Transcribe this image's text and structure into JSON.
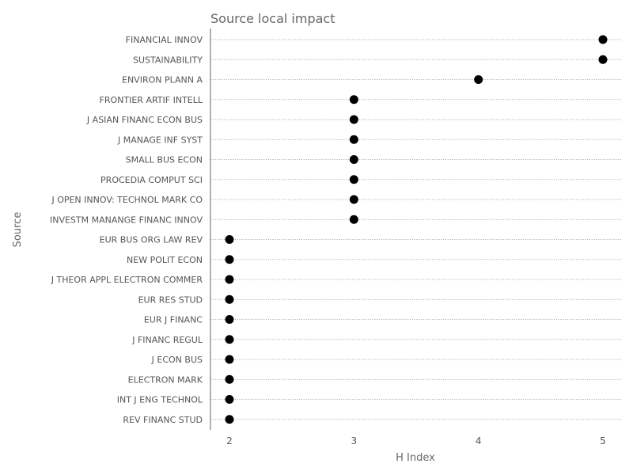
{
  "chart_data": {
    "type": "scatter",
    "title": "Source local impact",
    "xlabel": "H Index",
    "ylabel": "Source",
    "xlim": [
      1.85,
      5.15
    ],
    "xticks": [
      2,
      3,
      4,
      5
    ],
    "grid": "horizontal dotted lines per category",
    "marker_color": "#000000",
    "categories": [
      "FINANCIAL INNOV",
      "SUSTAINABILITY",
      "ENVIRON PLANN A",
      "FRONTIER ARTIF INTELL",
      "J ASIAN FINANC ECON BUS",
      "J MANAGE INF SYST",
      "SMALL BUS ECON",
      "PROCEDIA COMPUT SCI",
      "J OPEN INNOV: TECHNOL MARK CO",
      "INVESTM MANANGE FINANC INNOV",
      "EUR BUS ORG LAW REV",
      "NEW POLIT ECON",
      "J THEOR APPL ELECTRON COMMER",
      "EUR RES STUD",
      "EUR J FINANC",
      "J FINANC REGUL",
      "J ECON BUS",
      "ELECTRON MARK",
      "INT J ENG TECHNOL",
      "REV FINANC STUD"
    ],
    "values": [
      5,
      5,
      4,
      3,
      3,
      3,
      3,
      3,
      3,
      3,
      2,
      2,
      2,
      2,
      2,
      2,
      2,
      2,
      2,
      2
    ]
  }
}
